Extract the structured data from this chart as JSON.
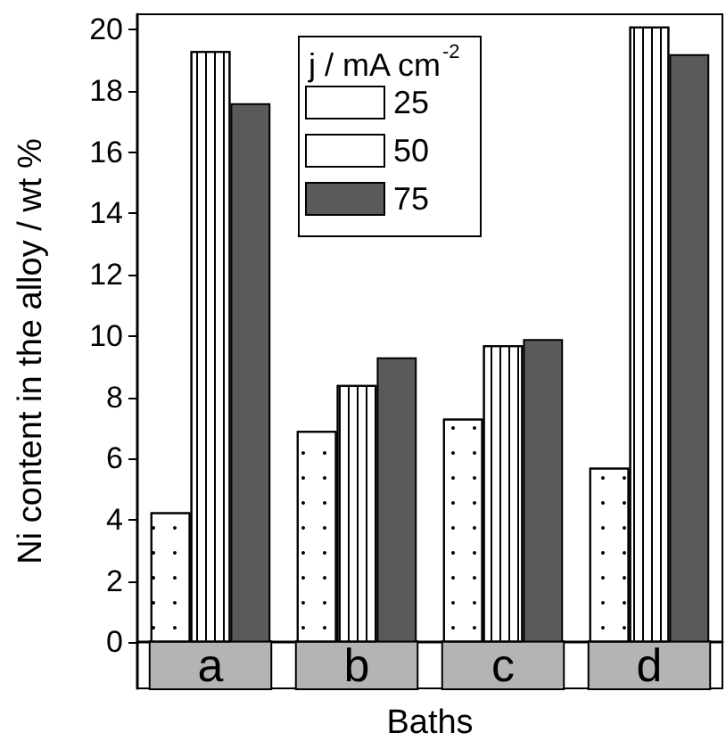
{
  "chart_data": {
    "type": "bar",
    "xlabel": "Baths",
    "ylabel": "Ni content in the alloy / wt %",
    "legend_title": "j / mA cm$^{-2}$",
    "categories": [
      "a",
      "b",
      "c",
      "d"
    ],
    "series": [
      {
        "name": "25",
        "color": "#ffffff",
        "values": [
          4.25,
          6.9,
          7.3,
          5.7
        ]
      },
      {
        "name": "50",
        "color": "#ffffff",
        "values": [
          19.3,
          8.4,
          9.7,
          20.1
        ]
      },
      {
        "name": "75",
        "color": "#5a5a5a",
        "values": [
          17.6,
          9.3,
          9.9,
          19.2
        ]
      }
    ],
    "ylim": [
      -1.5,
      20.5
    ],
    "yticks": [
      0,
      2,
      4,
      6,
      8,
      10,
      12,
      14,
      16,
      18,
      20
    ],
    "grid": false,
    "legend": "top"
  }
}
